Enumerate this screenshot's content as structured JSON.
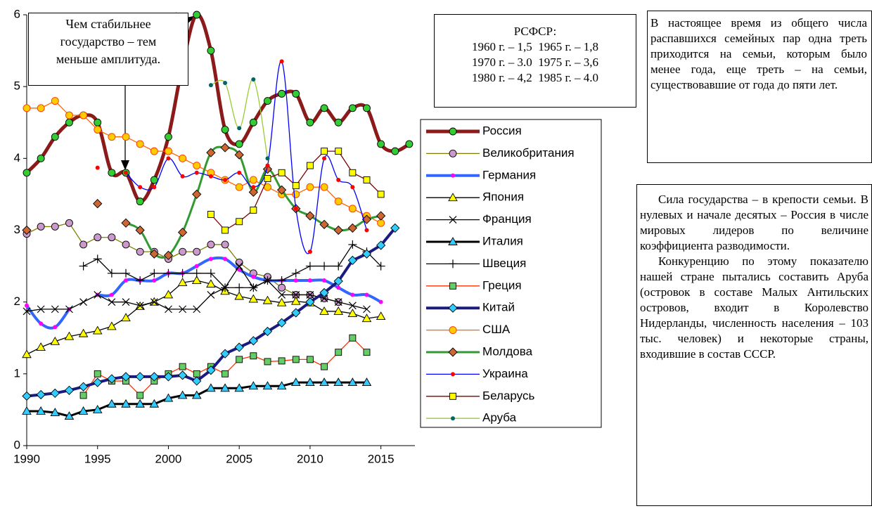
{
  "chart_data": {
    "type": "line",
    "x": [
      1990,
      1991,
      1992,
      1993,
      1994,
      1995,
      1996,
      1997,
      1998,
      1999,
      2000,
      2001,
      2002,
      2003,
      2004,
      2005,
      2006,
      2007,
      2008,
      2009,
      2010,
      2011,
      2012,
      2013,
      2014,
      2015,
      2016,
      2017
    ],
    "xlim": [
      1990,
      2017.4
    ],
    "xticks": [
      1990,
      1995,
      2000,
      2005,
      2010,
      2015
    ],
    "ylim": [
      0,
      6
    ],
    "yticks": [
      0,
      1,
      2,
      3,
      4,
      5,
      6
    ],
    "grid": false,
    "series": [
      {
        "name": "Россия",
        "color": "#8b1a1a",
        "line_width": 5,
        "smooth": true,
        "marker": "circle",
        "marker_color": "#33cc33",
        "values": [
          3.8,
          4.0,
          4.3,
          4.5,
          4.6,
          4.5,
          3.8,
          3.8,
          3.4,
          3.7,
          4.3,
          5.3,
          6.0,
          5.5,
          4.4,
          4.2,
          4.5,
          4.8,
          4.9,
          4.9,
          4.5,
          4.7,
          4.5,
          4.7,
          4.7,
          4.2,
          4.1,
          4.2
        ]
      },
      {
        "name": "Великобритания",
        "color": "#808000",
        "line_width": 1.3,
        "smooth": false,
        "marker": "circle",
        "marker_color": "#cc99cc",
        "values": [
          2.95,
          3.05,
          3.05,
          3.1,
          2.8,
          2.9,
          2.9,
          2.8,
          2.7,
          2.7,
          2.6,
          2.7,
          2.7,
          2.8,
          2.8,
          2.55,
          2.4,
          2.35,
          2.2,
          2.1,
          2.1,
          2.05,
          2.0,
          null,
          null,
          null,
          null,
          null
        ]
      },
      {
        "name": "Германия",
        "color": "#3366ff",
        "line_width": 4,
        "smooth": true,
        "marker": "dot",
        "marker_color": "#ff00ff",
        "values": [
          1.95,
          1.7,
          1.65,
          1.9,
          null,
          2.1,
          2.1,
          2.3,
          2.3,
          2.3,
          2.4,
          2.4,
          2.5,
          2.6,
          2.6,
          2.45,
          2.35,
          2.3,
          2.3,
          2.3,
          2.3,
          2.3,
          2.2,
          2.1,
          2.1,
          2.0,
          null,
          null
        ]
      },
      {
        "name": "Япония",
        "color": "#000000",
        "line_width": 1.3,
        "smooth": false,
        "marker": "triangle",
        "marker_color": "#ffff00",
        "values": [
          1.27,
          1.37,
          1.45,
          1.52,
          1.56,
          1.6,
          1.66,
          1.78,
          1.94,
          2.0,
          2.1,
          2.27,
          2.3,
          2.25,
          2.15,
          2.08,
          2.04,
          2.02,
          1.99,
          2.01,
          1.99,
          1.87,
          1.87,
          1.84,
          1.77,
          1.8,
          null,
          null
        ]
      },
      {
        "name": "Франция",
        "color": "#000000",
        "line_width": 1.3,
        "smooth": false,
        "marker": "x",
        "marker_color": "#000000",
        "values": [
          1.87,
          1.9,
          1.9,
          1.9,
          2.0,
          2.1,
          2.0,
          2.0,
          1.95,
          2.0,
          1.9,
          1.9,
          1.9,
          2.1,
          2.2,
          2.5,
          2.2,
          2.3,
          2.1,
          2.1,
          2.1,
          2.05,
          2.0,
          1.95,
          1.9,
          null,
          null,
          null
        ]
      },
      {
        "name": "Италия",
        "color": "#000000",
        "line_width": 3,
        "smooth": false,
        "marker": "triangle",
        "marker_color": "#33ccff",
        "values": [
          0.48,
          0.48,
          0.46,
          0.41,
          0.48,
          0.5,
          0.58,
          0.58,
          0.58,
          0.58,
          0.66,
          0.7,
          0.7,
          0.8,
          0.8,
          0.8,
          0.83,
          0.83,
          0.83,
          0.88,
          0.88,
          0.88,
          0.88,
          0.88,
          0.88,
          null,
          null,
          null
        ]
      },
      {
        "name": "Швеция",
        "color": "#000000",
        "line_width": 1.3,
        "smooth": false,
        "marker": "plus",
        "marker_color": "#000000",
        "values": [
          null,
          null,
          null,
          null,
          2.5,
          2.6,
          2.4,
          2.4,
          2.3,
          2.4,
          2.4,
          2.4,
          2.4,
          2.4,
          2.2,
          2.2,
          2.2,
          2.3,
          2.3,
          2.4,
          2.5,
          2.5,
          2.5,
          2.8,
          2.7,
          2.5,
          null,
          null
        ]
      },
      {
        "name": "Греция",
        "color": "#ff3300",
        "line_width": 1.3,
        "smooth": false,
        "marker": "square",
        "marker_color": "#66cc66",
        "values": [
          null,
          null,
          null,
          null,
          0.7,
          1.0,
          0.9,
          0.9,
          0.7,
          0.9,
          1.0,
          1.1,
          1.0,
          1.1,
          1.0,
          1.2,
          1.25,
          1.17,
          1.18,
          1.2,
          1.2,
          1.1,
          1.3,
          1.5,
          1.3,
          null,
          null,
          null
        ]
      },
      {
        "name": "Китай",
        "color": "#1a1a80",
        "line_width": 4,
        "smooth": false,
        "marker": "diamond",
        "marker_color": "#33ccff",
        "values": [
          0.69,
          0.71,
          0.73,
          0.77,
          0.82,
          0.88,
          0.93,
          0.96,
          0.96,
          0.96,
          0.96,
          0.98,
          0.9,
          1.05,
          1.28,
          1.37,
          1.46,
          1.59,
          1.71,
          1.85,
          2.0,
          2.13,
          2.29,
          2.58,
          2.67,
          2.79,
          3.03,
          null
        ]
      },
      {
        "name": "США",
        "color": "#ff6600",
        "line_width": 1.3,
        "smooth": false,
        "marker": "circle",
        "marker_color": "#ffcc00",
        "values": [
          4.7,
          4.7,
          4.8,
          4.6,
          4.6,
          4.4,
          4.3,
          4.3,
          4.2,
          4.1,
          4.1,
          4.0,
          3.9,
          3.8,
          3.7,
          3.6,
          3.7,
          3.6,
          3.5,
          3.5,
          3.6,
          3.6,
          3.4,
          3.3,
          3.2,
          3.1,
          null,
          null
        ]
      },
      {
        "name": "Молдова",
        "color": "#339933",
        "line_width": 3,
        "smooth": true,
        "marker": "diamond",
        "marker_color": "#cc6633",
        "values": [
          3.0,
          null,
          null,
          null,
          null,
          3.37,
          null,
          3.1,
          3.0,
          2.67,
          2.65,
          2.97,
          3.5,
          4.08,
          4.15,
          4.05,
          3.53,
          3.85,
          3.56,
          3.3,
          3.2,
          3.08,
          3.0,
          3.03,
          3.15,
          3.2,
          null,
          null
        ]
      },
      {
        "name": "Украина",
        "color": "#0000ff",
        "line_width": 1.3,
        "smooth": true,
        "marker": "dot",
        "marker_color": "#ff0000",
        "values": [
          null,
          null,
          null,
          null,
          null,
          3.87,
          null,
          3.8,
          3.6,
          3.6,
          4.0,
          3.75,
          3.8,
          3.75,
          3.7,
          3.8,
          3.6,
          3.9,
          5.35,
          3.3,
          2.7,
          4.0,
          3.7,
          3.6,
          3.0,
          null,
          null,
          null
        ]
      },
      {
        "name": "Беларусь",
        "color": "#800000",
        "line_width": 1.3,
        "smooth": false,
        "marker": "square",
        "marker_color": "#ffff00",
        "values": [
          null,
          null,
          null,
          null,
          null,
          null,
          null,
          null,
          null,
          null,
          null,
          null,
          null,
          3.22,
          3.0,
          3.12,
          3.28,
          3.72,
          3.8,
          3.62,
          3.9,
          4.1,
          4.1,
          3.8,
          3.7,
          3.5,
          null,
          null
        ]
      },
      {
        "name": "Аруба",
        "color": "#99cc33",
        "line_width": 1.3,
        "smooth": true,
        "marker": "dot",
        "marker_color": "#006666",
        "values": [
          null,
          null,
          null,
          null,
          null,
          null,
          null,
          null,
          null,
          null,
          null,
          null,
          null,
          5.02,
          5.05,
          4.42,
          5.1,
          4.0,
          null,
          null,
          null,
          null,
          null,
          null,
          null,
          null,
          null,
          null
        ]
      }
    ],
    "annotation": [
      "Чем стабильнее",
      "государство – тем",
      "меньше амплитуда."
    ],
    "rsfsr_note": [
      "РСФСР:",
      "1960 г. – 1,5  1965 г. – 1,8",
      "1970 г. – 3.0  1975 г. – 3,6",
      "1980 г. – 4,2  1985 г. – 4.0"
    ],
    "note_1": "В настоящее время из общего числа распавшихся семейных пар одна треть приходится на семьи, которым было менее года, еще треть – на семьи, существовавшие от года до пяти лет.",
    "note_2": [
      "Сила государства – в крепости семьи. В нулевых и начале десятых – Россия в числе мировых лидеров по величине коэффициента разводимости.",
      "Конкуренцию по этому показателю нашей стране пытались составить Аруба (островок в составе Малых Антильских островов, входит в Королевство Нидерланды, численность населения – 103 тыс. человек) и некоторые страны, входившие в состав СССР."
    ]
  }
}
